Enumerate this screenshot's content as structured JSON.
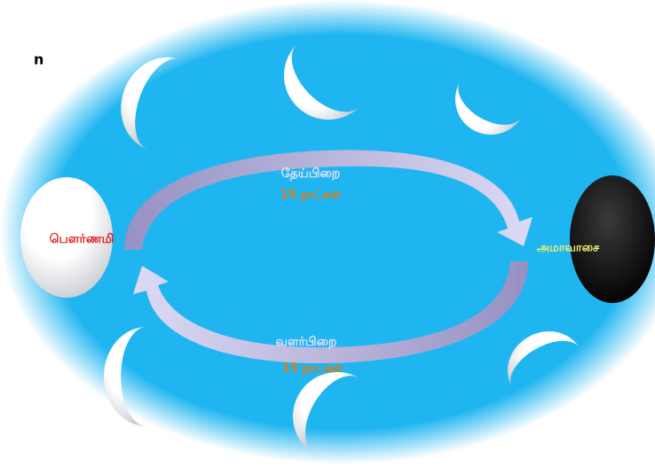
{
  "corner_text": "n",
  "full_moon": "பௌர்ணமி",
  "new_moon": "அமாவாசை",
  "waning": {
    "name": "தேய்பிறை",
    "duration": "15 நாட்கள்"
  },
  "waxing": {
    "name": "வளர்பிறை",
    "duration": "15 நாட்கள்"
  }
}
